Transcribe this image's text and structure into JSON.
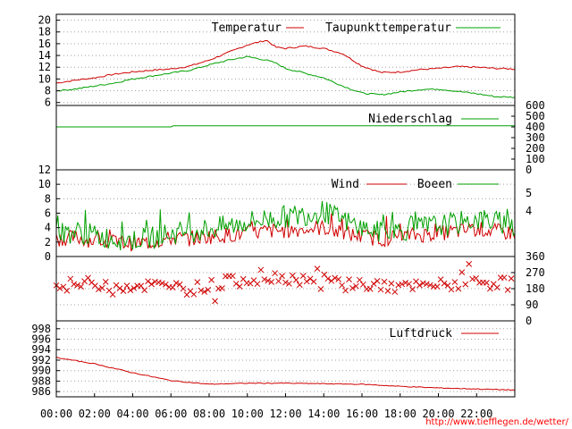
{
  "url": "http://www.tiefflegen.de/wetter/",
  "time_labels": [
    "00:00",
    "02:00",
    "04:00",
    "06:00",
    "08:00",
    "10:00",
    "12:00",
    "14:00",
    "16:00",
    "18:00",
    "20:00",
    "22:00"
  ],
  "colors": {
    "red": "#d00000",
    "green": "#00a000",
    "grid": "#a0a0a0"
  },
  "chart_data": [
    {
      "type": "line",
      "title": "",
      "ylim": [
        5.5,
        21
      ],
      "yticks": [
        "20",
        "18",
        "16",
        "14",
        "12",
        "10",
        "8",
        "6"
      ],
      "grid": true,
      "legend_position": "top",
      "x_hours": [
        0,
        1,
        2,
        3,
        4,
        5,
        6,
        7,
        8,
        9,
        10,
        11,
        11.5,
        12,
        13,
        14,
        15,
        16,
        17,
        18,
        19,
        20,
        21,
        22,
        23,
        24
      ],
      "series": [
        {
          "name": "Temperatur",
          "color": "#d00000",
          "values": [
            9.3,
            9.8,
            10.2,
            10.8,
            11.2,
            11.5,
            11.7,
            12.2,
            13.2,
            14.5,
            15.8,
            16.6,
            15.4,
            15.2,
            15.6,
            15.2,
            14.3,
            12.2,
            11.1,
            11.2,
            11.6,
            11.8,
            12.1,
            12.0,
            11.8,
            11.7
          ]
        },
        {
          "name": "Taupunkttemperatur",
          "color": "#00a000",
          "values": [
            8.0,
            8.3,
            8.8,
            9.3,
            10.0,
            10.5,
            11.0,
            11.5,
            12.4,
            13.2,
            13.8,
            13.2,
            12.7,
            11.8,
            11.0,
            10.2,
            8.8,
            7.6,
            7.3,
            7.8,
            8.2,
            8.3,
            7.9,
            7.5,
            7.0,
            6.9
          ]
        }
      ]
    },
    {
      "type": "line",
      "title": "",
      "ylim": [
        0,
        600
      ],
      "yticks": [
        "600",
        "500",
        "400",
        "300",
        "200",
        "100",
        "0"
      ],
      "legend_position": "top-right",
      "x_hours": [
        0,
        6,
        6.1,
        24
      ],
      "series": [
        {
          "name": "Niederschlag",
          "color": "#00a000",
          "values": [
            400,
            400,
            410,
            410
          ]
        }
      ]
    },
    {
      "type": "line",
      "title": "",
      "ylim": [
        0,
        12
      ],
      "yticks": [
        "12",
        "10",
        "8",
        "6",
        "4",
        "2",
        "0"
      ],
      "right_ticks": [
        "5",
        "4"
      ],
      "grid": true,
      "legend_position": "top-right",
      "x_hours": [
        0,
        1,
        2,
        3,
        4,
        5,
        6,
        7,
        8,
        9,
        10,
        11,
        12,
        13,
        14,
        15,
        16,
        17,
        18,
        19,
        20,
        21,
        22,
        23,
        24
      ],
      "series": [
        {
          "name": "Wind",
          "color": "#d00000",
          "values": [
            2.5,
            2.6,
            2.2,
            2.0,
            1.8,
            2.0,
            2.5,
            2.5,
            2.8,
            3.0,
            3.2,
            3.5,
            3.6,
            3.8,
            4.0,
            3.2,
            2.8,
            2.4,
            2.8,
            3.0,
            3.2,
            3.5,
            3.8,
            3.5,
            3.2
          ]
        },
        {
          "name": "Boeen",
          "color": "#00a000",
          "values": [
            3.2,
            3.4,
            2.9,
            2.5,
            2.3,
            2.6,
            3.2,
            3.5,
            3.8,
            4.2,
            4.8,
            5.2,
            5.5,
            5.8,
            6.2,
            5.0,
            4.0,
            3.3,
            3.6,
            4.0,
            4.3,
            4.6,
            5.2,
            4.8,
            4.4
          ]
        }
      ]
    },
    {
      "type": "scatter",
      "title": "",
      "ylim": [
        0,
        360
      ],
      "yticks": [
        "360",
        "270",
        "180",
        "90",
        "0"
      ],
      "grid": true,
      "x_hours": [
        0,
        1,
        2,
        3,
        4,
        5,
        6,
        7,
        8,
        9,
        10,
        11,
        12,
        13,
        14,
        15,
        16,
        17,
        18,
        19,
        20,
        21,
        22,
        23,
        24
      ],
      "series": [
        {
          "name": "",
          "color": "#d00000",
          "values": [
            190,
            205,
            210,
            200,
            195,
            200,
            185,
            180,
            195,
            215,
            235,
            240,
            245,
            230,
            225,
            215,
            205,
            195,
            185,
            190,
            200,
            205,
            215,
            210,
            205
          ]
        }
      ]
    },
    {
      "type": "line",
      "title": "",
      "ylim": [
        985,
        999.5
      ],
      "yticks": [
        "998",
        "996",
        "994",
        "992",
        "990",
        "988",
        "986"
      ],
      "grid": true,
      "legend_position": "top-right",
      "x_hours": [
        0,
        2,
        4,
        6,
        8,
        10,
        12,
        14,
        16,
        18,
        20,
        22,
        24
      ],
      "series": [
        {
          "name": "Luftdruck",
          "color": "#d00000",
          "values": [
            992.5,
            991.3,
            989.6,
            988.1,
            987.4,
            987.6,
            987.6,
            987.5,
            987.4,
            987.0,
            986.7,
            986.5,
            986.3
          ]
        }
      ]
    }
  ]
}
